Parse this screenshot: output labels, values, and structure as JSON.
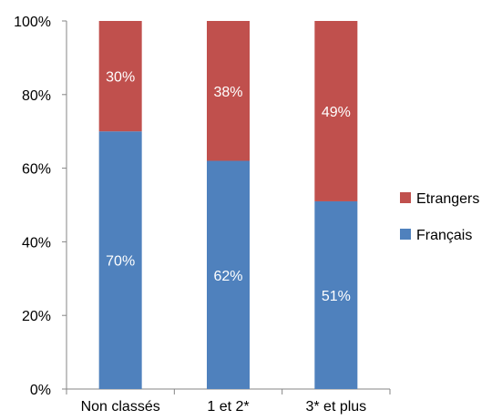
{
  "chart_data": {
    "type": "bar",
    "stacked": true,
    "percent": true,
    "categories": [
      "Non classés",
      "1 et 2*",
      "3* et plus"
    ],
    "series": [
      {
        "name": "Français",
        "values": [
          70,
          62,
          51
        ],
        "labels": [
          "70%",
          "62%",
          "51%"
        ],
        "color": "#4F81BD"
      },
      {
        "name": "Etrangers",
        "values": [
          30,
          38,
          49
        ],
        "labels": [
          "30%",
          "38%",
          "49%"
        ],
        "color": "#C0504D"
      }
    ],
    "ylim": [
      0,
      100
    ],
    "yticks": [
      "0%",
      "20%",
      "40%",
      "60%",
      "80%",
      "100%"
    ],
    "grid": false,
    "legend": {
      "position": "right",
      "entries": [
        {
          "name": "Etrangers",
          "color": "#C0504D"
        },
        {
          "name": "Français",
          "color": "#4F81BD"
        }
      ]
    }
  }
}
